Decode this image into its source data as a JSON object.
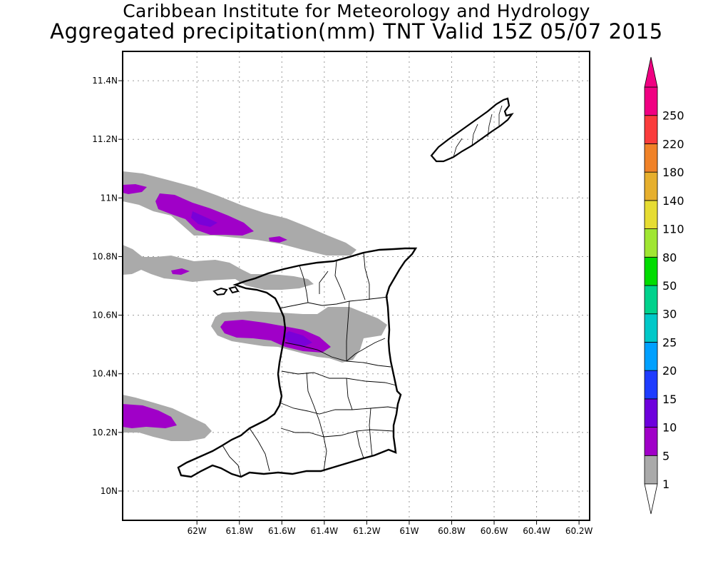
{
  "header": {
    "title_line1": "Caribbean Institute for Meteorology and Hydrology",
    "title_line2": "Aggregated precipitation(mm) TNT Valid 15Z 05/07 2015"
  },
  "map": {
    "region": "Trinidad and Tobago",
    "lon_range": [
      -62.35,
      -60.15
    ],
    "lat_range": [
      9.9,
      11.5
    ],
    "grid": true,
    "lat_ticks": [
      {
        "value": 11.4,
        "label": "11.4N"
      },
      {
        "value": 11.2,
        "label": "11.2N"
      },
      {
        "value": 11.0,
        "label": "11N"
      },
      {
        "value": 10.8,
        "label": "10.8N"
      },
      {
        "value": 10.6,
        "label": "10.6N"
      },
      {
        "value": 10.4,
        "label": "10.4N"
      },
      {
        "value": 10.2,
        "label": "10.2N"
      },
      {
        "value": 10.0,
        "label": "10N"
      }
    ],
    "lon_ticks": [
      {
        "value": -62.0,
        "label": "62W"
      },
      {
        "value": -61.8,
        "label": "61.8W"
      },
      {
        "value": -61.6,
        "label": "61.6W"
      },
      {
        "value": -61.4,
        "label": "61.4W"
      },
      {
        "value": -61.2,
        "label": "61.2W"
      },
      {
        "value": -61.0,
        "label": "61W"
      },
      {
        "value": -60.8,
        "label": "60.8W"
      },
      {
        "value": -60.6,
        "label": "60.6W"
      },
      {
        "value": -60.4,
        "label": "60.4W"
      },
      {
        "value": -60.2,
        "label": "60.2W"
      }
    ]
  },
  "colorbar": {
    "levels": [
      {
        "label": "1",
        "color": "#aaaaaa"
      },
      {
        "label": "5",
        "color": "#a000c8"
      },
      {
        "label": "10",
        "color": "#6e00dc"
      },
      {
        "label": "15",
        "color": "#1e3cff"
      },
      {
        "label": "20",
        "color": "#00a0ff"
      },
      {
        "label": "25",
        "color": "#00c8c8"
      },
      {
        "label": "30",
        "color": "#00d28c"
      },
      {
        "label": "50",
        "color": "#00dc00"
      },
      {
        "label": "80",
        "color": "#a0e632"
      },
      {
        "label": "110",
        "color": "#e6dc32"
      },
      {
        "label": "140",
        "color": "#e6af2d"
      },
      {
        "label": "180",
        "color": "#f08228"
      },
      {
        "label": "220",
        "color": "#fa3c3c"
      },
      {
        "label": "250",
        "color": "#f00082"
      }
    ]
  },
  "colors": {
    "precip_light": "#aaaaaa",
    "precip_moderate": "#a000c8",
    "precip_core": "#7a00d8",
    "coastline": "#000000",
    "grid": "#9a9a9a"
  }
}
